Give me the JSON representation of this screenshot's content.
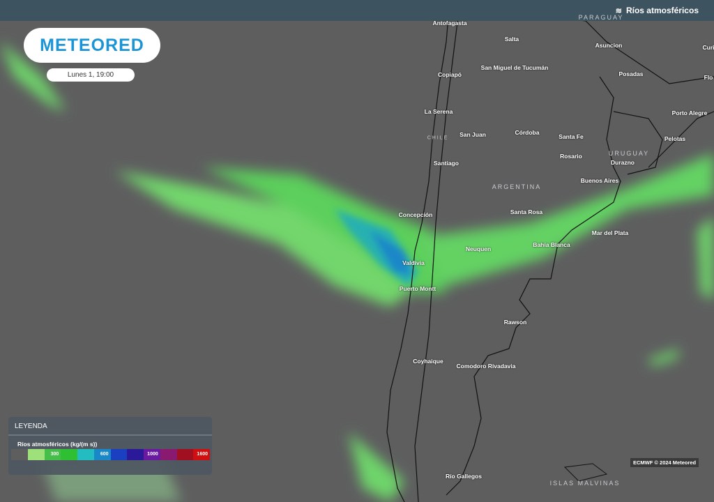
{
  "header": {
    "layer_title": "Ríos atmosféricos",
    "layer_icon": "wind-icon"
  },
  "logo": "METEORED",
  "date": "Lunes 1, 19:00",
  "countries": [
    "PARAGUAY",
    "CHILE",
    "URUGUAY",
    "ARGENTINA",
    "ISLAS MALVINAS"
  ],
  "cities": [
    "Antofagasta",
    "Salta",
    "Asuncion",
    "Curi",
    "Copiapó",
    "San Miguel de Tucumán",
    "Posadas",
    "Flo",
    "La Serena",
    "Porto Alegre",
    "San Juan",
    "Córdoba",
    "Santa Fe",
    "Pelotas",
    "Rosario",
    "Durazno",
    "Santiago",
    "Buenos Aires",
    "Concepción",
    "Santa Rosa",
    "Mar del Plata",
    "Neuquen",
    "Bahía Blanca",
    "Valdivia",
    "Puerto Montt",
    "Rawson",
    "Coyhaique",
    "Comodoro Rivadavia",
    "Río Gallegos"
  ],
  "legend": {
    "title": "LEYENDA",
    "subtitle": "Ríos atmosféricos (kg/(m s))",
    "colors": [
      "#5e5e5f",
      "#9ee07a",
      "#46bf4a",
      "#2ebf33",
      "#23bcc0",
      "#1a87c8",
      "#1a3fc0",
      "#2a1a9a",
      "#6a1aa0",
      "#8a1a70",
      "#a01020",
      "#d01010"
    ],
    "labels": [
      "",
      "",
      "300",
      "",
      "",
      "600",
      "",
      "",
      "1000",
      "",
      "",
      "1600"
    ]
  },
  "credit": "ECMWF © 2024 Meteored"
}
